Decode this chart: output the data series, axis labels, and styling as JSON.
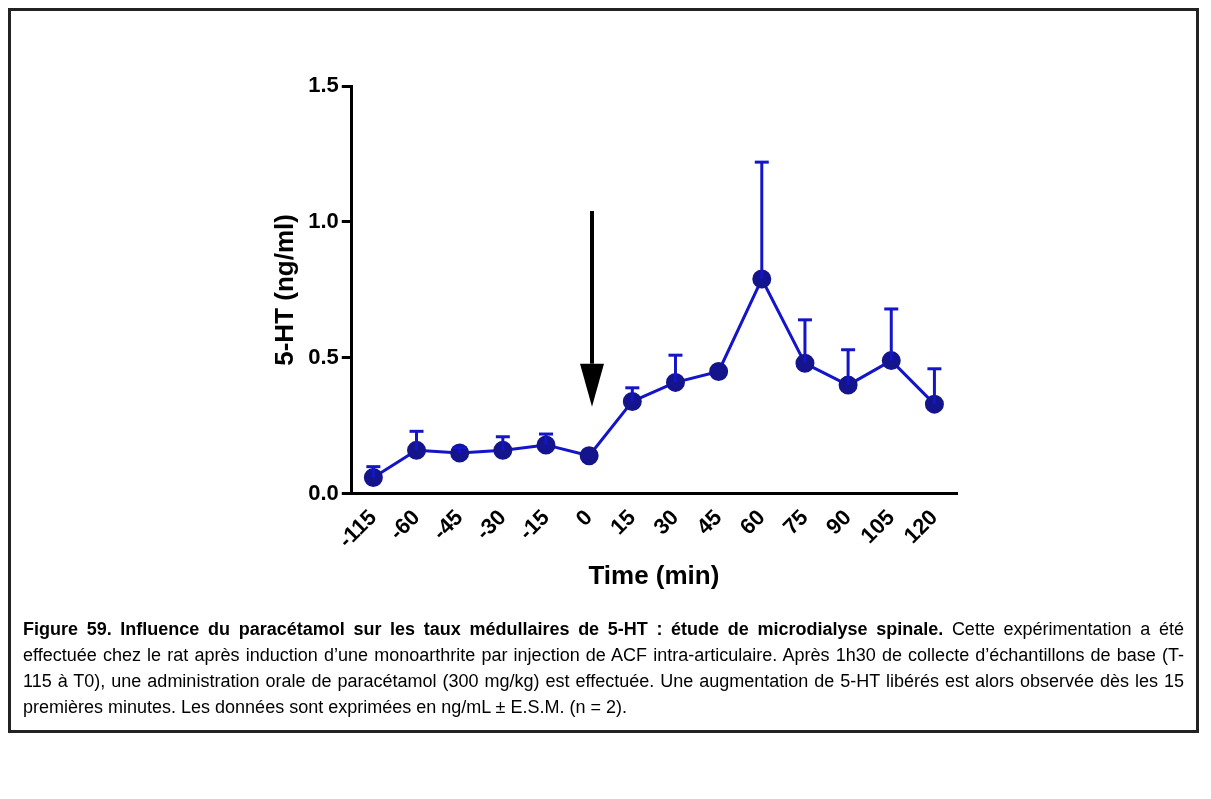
{
  "chart_data": {
    "type": "line",
    "title": "Figure 59. Influence du paracétamol sur les taux médullaires de 5-HT : étude de microdialyse spinale.",
    "annotations": [
      "Cette expérimentation a été effectuée chez le rat après induction d’une monoarthrite par injection de ACF intra-articulaire. Après 1h30 de collecte d’échantillons de base (T-115 à T0), une administration orale de paracétamol (300 mg/kg) est effectuée. Une augmentation de 5-HT libérés est alors observée dès les 15 premières minutes. Les données sont exprimées en ng/mL ± E.S.M. (n = 2)."
    ],
    "xlabel": "Time (min)",
    "ylabel": "5-HT (ng/ml)",
    "categories": [
      "-115",
      "-60",
      "-45",
      "-30",
      "-15",
      "0",
      "15",
      "30",
      "45",
      "60",
      "75",
      "90",
      "105",
      "120"
    ],
    "series": [
      {
        "color": "#1414c8",
        "values": [
          0.06,
          0.16,
          0.15,
          0.16,
          0.18,
          0.14,
          0.34,
          0.41,
          0.45,
          0.79,
          0.48,
          0.4,
          0.49,
          0.33
        ],
        "errors": [
          [
            0.06,
            0.1
          ],
          [
            0.16,
            0.23
          ],
          [
            0.15,
            0.17
          ],
          [
            0.16,
            0.21
          ],
          [
            0.18,
            0.22
          ],
          null,
          [
            0.34,
            0.39
          ],
          [
            0.41,
            0.51
          ],
          null,
          [
            0.79,
            1.22
          ],
          [
            0.48,
            0.64
          ],
          [
            0.4,
            0.53
          ],
          [
            0.49,
            0.68
          ],
          [
            0.33,
            0.46
          ]
        ]
      }
    ],
    "ylim": [
      0,
      1.5
    ],
    "yticks": [
      {
        "value": 0,
        "label": "0.0"
      },
      {
        "value": 0.5,
        "label": "0.5"
      },
      {
        "value": 1,
        "label": "1.0"
      },
      {
        "value": 1.5,
        "label": "1.5"
      }
    ],
    "grid": false,
    "legend": false,
    "marker": "circle",
    "line_style": "solid"
  }
}
